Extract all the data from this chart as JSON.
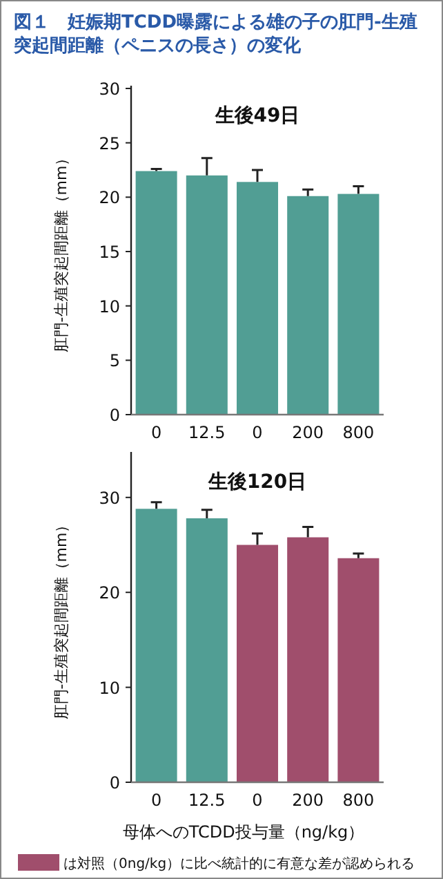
{
  "chart_data": [
    {
      "type": "bar",
      "title": "図１　妊娠期TCDD曝露による雄の子の肛門-生殖突起間距離（ペニスの長さ）の変化",
      "ylabel": "肛門-生殖突起間距離（mm）",
      "annotations": [
        "生後49日"
      ],
      "categories": [
        "0",
        "12.5",
        "0",
        "200",
        "800"
      ],
      "colors": [
        "#519e94",
        "#519e94",
        "#519e94",
        "#519e94",
        "#519e94"
      ],
      "values": [
        22.4,
        22.0,
        21.4,
        20.1,
        20.3
      ],
      "errors": [
        0.2,
        1.6,
        1.1,
        0.6,
        0.7
      ],
      "ylim": [
        0,
        30
      ],
      "yticks": [
        0,
        5,
        10,
        15,
        20,
        25,
        30
      ]
    },
    {
      "type": "bar",
      "ylabel": "肛門-生殖突起間距離（mm）",
      "xlabel": "母体へのTCDD投与量（ng/kg）",
      "annotations": [
        "生後120日",
        "は対照（0ng/kg）に比べ統計的に有意な差が認められる"
      ],
      "categories": [
        "0",
        "12.5",
        "0",
        "200",
        "800"
      ],
      "colors": [
        "#519e94",
        "#519e94",
        "#a04e6c",
        "#a04e6c",
        "#a04e6c"
      ],
      "values": [
        28.8,
        27.8,
        25.0,
        25.8,
        23.6
      ],
      "errors": [
        0.7,
        0.9,
        1.2,
        1.1,
        0.5
      ],
      "ylim": [
        0,
        34.5
      ],
      "yticks": [
        0,
        10,
        20,
        30
      ]
    }
  ]
}
